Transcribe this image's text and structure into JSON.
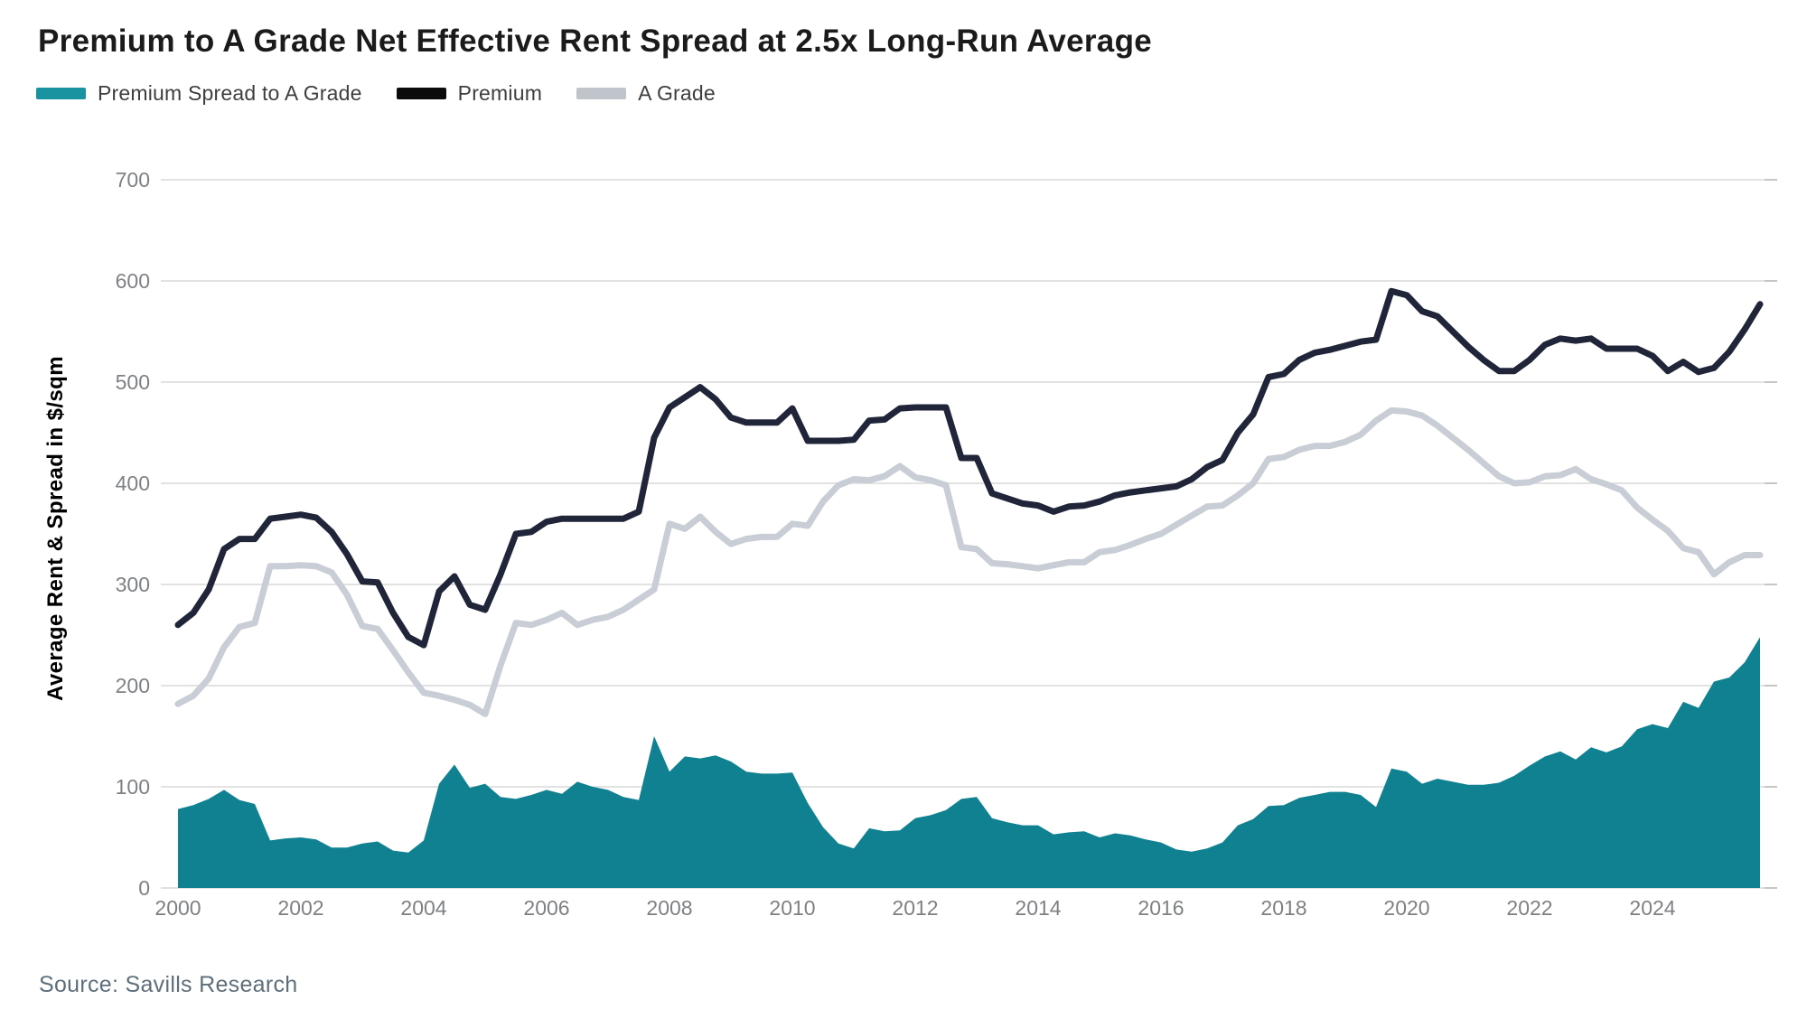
{
  "legend": {
    "items": [
      {
        "label": "Premium Spread to A Grade",
        "color": "#1a93a1"
      },
      {
        "label": "Premium",
        "color": "#0b0b0b"
      },
      {
        "label": "A Grade",
        "color": "#c0c5cc"
      }
    ]
  },
  "chart_data": {
    "type": "area+line",
    "title": "Premium to A Grade Net Effective Rent Spread at 2.5x Long-Run Average",
    "ylabel": "Average Rent & Spread in $/sqm",
    "xlabel": "",
    "source": "Source: Savills Research",
    "x_unit": "quarterly",
    "x_range": [
      "2000 Q1",
      "2025 Q4"
    ],
    "x_tick_years": [
      2000,
      2002,
      2004,
      2006,
      2008,
      2010,
      2012,
      2014,
      2016,
      2018,
      2020,
      2022,
      2024
    ],
    "y_ticks": [
      0,
      100,
      200,
      300,
      400,
      500,
      600,
      700
    ],
    "ylim": [
      0,
      700
    ],
    "grid": true,
    "legend_position": "top-left",
    "series": [
      {
        "name": "Premium Spread to A Grade",
        "type": "area",
        "color": "#0f8190",
        "values": [
          78,
          82,
          88,
          97,
          87,
          83,
          47,
          49,
          50,
          48,
          40,
          40,
          44,
          46,
          37,
          35,
          47,
          103,
          122,
          99,
          103,
          90,
          88,
          92,
          97,
          93,
          105,
          100,
          97,
          90,
          87,
          150,
          115,
          130,
          128,
          131,
          125,
          115,
          113,
          113,
          114,
          84,
          60,
          44,
          39,
          59,
          56,
          57,
          69,
          72,
          77,
          88,
          90,
          69,
          65,
          62,
          62,
          53,
          55,
          56,
          50,
          54,
          52,
          48,
          45,
          38,
          36,
          39,
          45,
          62,
          68,
          81,
          82,
          89,
          92,
          95,
          95,
          92,
          80,
          118,
          115,
          103,
          108,
          105,
          102,
          102,
          104,
          111,
          121,
          130,
          135,
          127,
          139,
          134,
          140,
          157,
          162,
          158,
          184,
          178,
          204,
          208,
          223,
          248
        ]
      },
      {
        "name": "Premium",
        "type": "line",
        "color": "#20253a",
        "values": [
          260,
          272,
          295,
          335,
          345,
          345,
          365,
          367,
          369,
          366,
          352,
          330,
          303,
          302,
          272,
          248,
          240,
          293,
          308,
          280,
          275,
          310,
          350,
          352,
          362,
          365,
          365,
          365,
          365,
          365,
          372,
          445,
          475,
          485,
          495,
          483,
          465,
          460,
          460,
          460,
          474,
          442,
          442,
          442,
          443,
          462,
          463,
          474,
          475,
          475,
          475,
          425,
          425,
          390,
          385,
          380,
          378,
          372,
          377,
          378,
          382,
          388,
          391,
          393,
          395,
          397,
          404,
          416,
          423,
          450,
          468,
          505,
          508,
          522,
          529,
          532,
          536,
          540,
          542,
          590,
          586,
          570,
          565,
          550,
          535,
          522,
          511,
          511,
          522,
          537,
          543,
          541,
          543,
          533,
          533,
          533,
          526,
          511,
          520,
          510,
          514,
          530,
          552,
          577
        ]
      },
      {
        "name": "A Grade",
        "type": "line",
        "color": "#c9cdd5",
        "values": [
          182,
          190,
          207,
          238,
          258,
          262,
          318,
          318,
          319,
          318,
          312,
          290,
          259,
          256,
          235,
          213,
          193,
          190,
          186,
          181,
          172,
          220,
          262,
          260,
          265,
          272,
          260,
          265,
          268,
          275,
          285,
          295,
          360,
          355,
          367,
          352,
          340,
          345,
          347,
          347,
          360,
          358,
          382,
          398,
          404,
          403,
          407,
          417,
          406,
          403,
          398,
          337,
          335,
          321,
          320,
          318,
          316,
          319,
          322,
          322,
          332,
          334,
          339,
          345,
          350,
          359,
          368,
          377,
          378,
          388,
          400,
          424,
          426,
          433,
          437,
          437,
          441,
          448,
          462,
          472,
          471,
          467,
          457,
          445,
          433,
          420,
          407,
          400,
          401,
          407,
          408,
          414,
          404,
          399,
          393,
          376,
          364,
          353,
          336,
          332,
          310,
          322,
          329,
          329
        ]
      }
    ]
  }
}
